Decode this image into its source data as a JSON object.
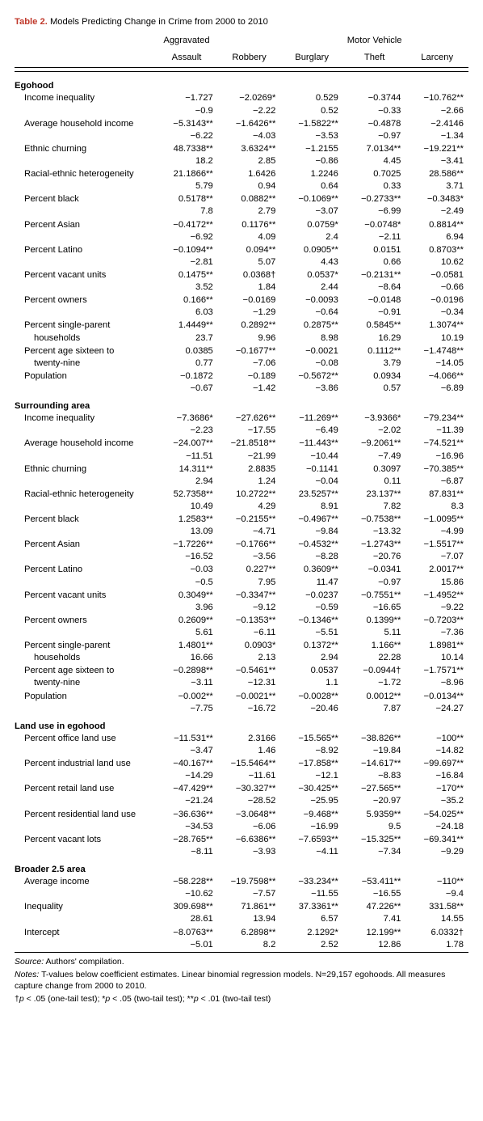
{
  "title_label": "Table 2.",
  "title_text": "Models Predicting Change in Crime from 2000 to 2010",
  "columns": [
    "Aggravated Assault",
    "Robbery",
    "Burglary",
    "Motor Vehicle Theft",
    "Larceny"
  ],
  "col_breaks": {
    "c0a": "Aggravated",
    "c0b": "Assault",
    "c3a": "Motor Vehicle",
    "c3b": "Theft"
  },
  "sections": [
    {
      "name": "Egohood",
      "rows": [
        {
          "label": "Income inequality",
          "coef": [
            "−1.727",
            "−2.0269*",
            "0.529",
            "−0.3744",
            "−10.762**"
          ],
          "t": [
            "−0.9",
            "−2.22",
            "0.52",
            "−0.33",
            "−2.66"
          ]
        },
        {
          "label": "Average household income",
          "coef": [
            "−5.3143**",
            "−1.6426**",
            "−1.5822**",
            "−0.4878",
            "−2.4146"
          ],
          "t": [
            "−6.22",
            "−4.03",
            "−3.53",
            "−0.97",
            "−1.34"
          ]
        },
        {
          "label": "Ethnic churning",
          "coef": [
            "48.7338**",
            "3.6324**",
            "−1.2155",
            "7.0134**",
            "−19.221**"
          ],
          "t": [
            "18.2",
            "2.85",
            "−0.86",
            "4.45",
            "−3.41"
          ]
        },
        {
          "label": "Racial-ethnic heterogeneity",
          "coef": [
            "21.1866**",
            "1.6426",
            "1.2246",
            "0.7025",
            "28.586**"
          ],
          "t": [
            "5.79",
            "0.94",
            "0.64",
            "0.33",
            "3.71"
          ]
        },
        {
          "label": "Percent black",
          "coef": [
            "0.5178**",
            "0.0882**",
            "−0.1069**",
            "−0.2733**",
            "−0.3483*"
          ],
          "t": [
            "7.8",
            "2.79",
            "−3.07",
            "−6.99",
            "−2.49"
          ]
        },
        {
          "label": "Percent Asian",
          "coef": [
            "−0.4172**",
            "0.1176**",
            "0.0759*",
            "−0.0748*",
            "0.8814**"
          ],
          "t": [
            "−6.92",
            "4.09",
            "2.4",
            "−2.11",
            "6.94"
          ]
        },
        {
          "label": "Percent Latino",
          "coef": [
            "−0.1094**",
            "0.094**",
            "0.0905**",
            "0.0151",
            "0.8703**"
          ],
          "t": [
            "−2.81",
            "5.07",
            "4.43",
            "0.66",
            "10.62"
          ]
        },
        {
          "label": "Percent vacant units",
          "coef": [
            "0.1475**",
            "0.0368†",
            "0.0537*",
            "−0.2131**",
            "−0.0581"
          ],
          "t": [
            "3.52",
            "1.84",
            "2.44",
            "−8.64",
            "−0.66"
          ]
        },
        {
          "label": "Percent owners",
          "coef": [
            "0.166**",
            "−0.0169",
            "−0.0093",
            "−0.0148",
            "−0.0196"
          ],
          "t": [
            "6.03",
            "−1.29",
            "−0.64",
            "−0.91",
            "−0.34"
          ]
        },
        {
          "label": "Percent single-parent households",
          "label2": "households",
          "label1": "Percent single-parent",
          "coef": [
            "1.4449**",
            "0.2892**",
            "0.2875**",
            "0.5845**",
            "1.3074**"
          ],
          "t": [
            "23.7",
            "9.96",
            "8.98",
            "16.29",
            "10.19"
          ]
        },
        {
          "label": "Percent age sixteen to twenty-nine",
          "label2": "twenty-nine",
          "label1": "Percent age sixteen to",
          "coef": [
            "0.0385",
            "−0.1677**",
            "−0.0021",
            "0.1112**",
            "−1.4748**"
          ],
          "t": [
            "0.77",
            "−7.06",
            "−0.08",
            "3.79",
            "−14.05"
          ]
        },
        {
          "label": "Population",
          "coef": [
            "−0.1872",
            "−0.189",
            "−0.5672**",
            "0.0934",
            "−4.066**"
          ],
          "t": [
            "−0.67",
            "−1.42",
            "−3.86",
            "0.57",
            "−6.89"
          ]
        }
      ]
    },
    {
      "name": "Surrounding area",
      "rows": [
        {
          "label": "Income inequality",
          "coef": [
            "−7.3686*",
            "−27.626**",
            "−11.269**",
            "−3.9366*",
            "−79.234**"
          ],
          "t": [
            "−2.23",
            "−17.55",
            "−6.49",
            "−2.02",
            "−11.39"
          ]
        },
        {
          "label": "Average household income",
          "coef": [
            "−24.007**",
            "−21.8518**",
            "−11.443**",
            "−9.2061**",
            "−74.521**"
          ],
          "t": [
            "−11.51",
            "−21.99",
            "−10.44",
            "−7.49",
            "−16.96"
          ]
        },
        {
          "label": "Ethnic churning",
          "coef": [
            "14.311**",
            "2.8835",
            "−0.1141",
            "0.3097",
            "−70.385**"
          ],
          "t": [
            "2.94",
            "1.24",
            "−0.04",
            "0.11",
            "−6.87"
          ]
        },
        {
          "label": "Racial-ethnic heterogeneity",
          "coef": [
            "52.7358**",
            "10.2722**",
            "23.5257**",
            "23.137**",
            "87.831**"
          ],
          "t": [
            "10.49",
            "4.29",
            "8.91",
            "7.82",
            "8.3"
          ]
        },
        {
          "label": "Percent black",
          "coef": [
            "1.2583**",
            "−0.2155**",
            "−0.4967**",
            "−0.7538**",
            "−1.0095**"
          ],
          "t": [
            "13.09",
            "−4.71",
            "−9.84",
            "−13.32",
            "−4.99"
          ]
        },
        {
          "label": "Percent Asian",
          "coef": [
            "−1.7226**",
            "−0.1766**",
            "−0.4532**",
            "−1.2743**",
            "−1.5517**"
          ],
          "t": [
            "−16.52",
            "−3.56",
            "−8.28",
            "−20.76",
            "−7.07"
          ]
        },
        {
          "label": "Percent Latino",
          "coef": [
            "−0.03",
            "0.227**",
            "0.3609**",
            "−0.0341",
            "2.0017**"
          ],
          "t": [
            "−0.5",
            "7.95",
            "11.47",
            "−0.97",
            "15.86"
          ]
        },
        {
          "label": "Percent vacant units",
          "coef": [
            "0.3049**",
            "−0.3347**",
            "−0.0237",
            "−0.7551**",
            "−1.4952**"
          ],
          "t": [
            "3.96",
            "−9.12",
            "−0.59",
            "−16.65",
            "−9.22"
          ]
        },
        {
          "label": "Percent owners",
          "coef": [
            "0.2609**",
            "−0.1353**",
            "−0.1346**",
            "0.1399**",
            "−0.7203**"
          ],
          "t": [
            "5.61",
            "−6.11",
            "−5.51",
            "5.11",
            "−7.36"
          ]
        },
        {
          "label": "Percent single-parent households",
          "label2": "households",
          "label1": "Percent single-parent",
          "coef": [
            "1.4801**",
            "0.0903*",
            "0.1372**",
            "1.166**",
            "1.8981**"
          ],
          "t": [
            "16.66",
            "2.13",
            "2.94",
            "22.28",
            "10.14"
          ]
        },
        {
          "label": "Percent age sixteen to twenty-nine",
          "label2": "twenty-nine",
          "label1": "Percent age sixteen to",
          "coef": [
            "−0.2898**",
            "−0.5461**",
            "0.0537",
            "−0.0944†",
            "−1.7571**"
          ],
          "t": [
            "−3.11",
            "−12.31",
            "1.1",
            "−1.72",
            "−8.96"
          ]
        },
        {
          "label": "Population",
          "coef": [
            "−0.002**",
            "−0.0021**",
            "−0.0028**",
            "0.0012**",
            "−0.0134**"
          ],
          "t": [
            "−7.75",
            "−16.72",
            "−20.46",
            "7.87",
            "−24.27"
          ]
        }
      ]
    },
    {
      "name": "Land use in egohood",
      "rows": [
        {
          "label": "Percent office land use",
          "coef": [
            "−11.531**",
            "2.3166",
            "−15.565**",
            "−38.826**",
            "−100**"
          ],
          "t": [
            "−3.47",
            "1.46",
            "−8.92",
            "−19.84",
            "−14.82"
          ]
        },
        {
          "label": "Percent industrial land use",
          "coef": [
            "−40.167**",
            "−15.5464**",
            "−17.858**",
            "−14.617**",
            "−99.697**"
          ],
          "t": [
            "−14.29",
            "−11.61",
            "−12.1",
            "−8.83",
            "−16.84"
          ]
        },
        {
          "label": "Percent retail land use",
          "coef": [
            "−47.429**",
            "−30.327**",
            "−30.425**",
            "−27.565**",
            "−170**"
          ],
          "t": [
            "−21.24",
            "−28.52",
            "−25.95",
            "−20.97",
            "−35.2"
          ]
        },
        {
          "label": "Percent residential land use",
          "coef": [
            "−36.636**",
            "−3.0648**",
            "−9.468**",
            "5.9359**",
            "−54.025**"
          ],
          "t": [
            "−34.53",
            "−6.06",
            "−16.99",
            "9.5",
            "−24.18"
          ]
        },
        {
          "label": "Percent vacant lots",
          "coef": [
            "−28.765**",
            "−6.6386**",
            "−7.6593**",
            "−15.325**",
            "−69.341**"
          ],
          "t": [
            "−8.11",
            "−3.93",
            "−4.11",
            "−7.34",
            "−9.29"
          ]
        }
      ]
    },
    {
      "name": "Broader 2.5 area",
      "rows": [
        {
          "label": "Average income",
          "coef": [
            "−58.228**",
            "−19.7598**",
            "−33.234**",
            "−53.411**",
            "−110**"
          ],
          "t": [
            "−10.62",
            "−7.57",
            "−11.55",
            "−16.55",
            "−9.4"
          ]
        },
        {
          "label": "Inequality",
          "coef": [
            "309.698**",
            "71.861**",
            "37.3361**",
            "47.226**",
            "331.58**"
          ],
          "t": [
            "28.61",
            "13.94",
            "6.57",
            "7.41",
            "14.55"
          ]
        },
        {
          "label": "Intercept",
          "coef": [
            "−8.0763**",
            "6.2898**",
            "2.1292*",
            "12.199**",
            "6.0332†"
          ],
          "t": [
            "−5.01",
            "8.2",
            "2.52",
            "12.86",
            "1.78"
          ]
        }
      ]
    }
  ],
  "source_label": "Source:",
  "source_text": "Authors' compilation.",
  "notes_label": "Notes:",
  "notes_text": "T-values below coefficient estimates. Linear binomial regression models. N=29,157 egohoods. All measures capture change from 2000 to 2010.",
  "sig_text": "†p < .05 (one-tail test); *p < .05 (two-tail test); **p < .01 (two-tail test)"
}
